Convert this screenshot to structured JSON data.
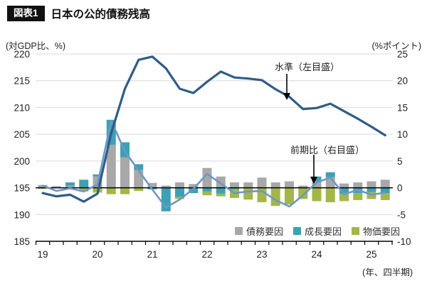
{
  "header": {
    "badge": "図表1",
    "title": "日本の公的債務残高"
  },
  "colors": {
    "level_line": "#2e5c88",
    "qoq_line": "#6d97c6",
    "debt_bar": "#a8a8a8",
    "growth_bar": "#3aa2b4",
    "price_bar": "#a2b748",
    "grid": "#d9d9d9",
    "axis": "#000000"
  },
  "chart_data": {
    "type": "combo-bar-line",
    "title": "日本の公的債務残高",
    "x_quarters": [
      "2019Q1",
      "2019Q2",
      "2019Q3",
      "2019Q4",
      "2020Q1",
      "2020Q2",
      "2020Q3",
      "2020Q4",
      "2021Q1",
      "2021Q2",
      "2021Q3",
      "2021Q4",
      "2022Q1",
      "2022Q2",
      "2022Q3",
      "2022Q4",
      "2023Q1",
      "2023Q2",
      "2023Q3",
      "2023Q4",
      "2024Q1",
      "2024Q2",
      "2024Q3",
      "2024Q4",
      "2025Q1",
      "2025Q2"
    ],
    "x_year_ticks": [
      "19",
      "20",
      "21",
      "22",
      "23",
      "24",
      "25"
    ],
    "xlabel_note": "(年、四半期)",
    "grid": true,
    "left_axis": {
      "label": "(対GDP比、%)",
      "min": 185,
      "max": 220,
      "ticks": [
        220,
        215,
        210,
        205,
        200,
        195,
        190,
        185
      ]
    },
    "right_axis": {
      "label": "(%ポイント)",
      "min": -10,
      "max": 25,
      "ticks": [
        25,
        20,
        15,
        10,
        5,
        0,
        -5,
        -10
      ]
    },
    "annotations": {
      "level": "水準（左目盛）",
      "qoq": "前期比（右目盛）"
    },
    "bar_series": [
      {
        "name": "債務要因",
        "color": "#a8a8a8",
        "axis": "right",
        "values": [
          0.4,
          0.3,
          0.4,
          0,
          2.1,
          8.0,
          5.7,
          3.3,
          0.9,
          0.4,
          1.0,
          0.7,
          3.7,
          2.1,
          1.0,
          1.0,
          1.9,
          1.0,
          1.2,
          0.4,
          1.2,
          2.0,
          0.8,
          1.0,
          1.2,
          1.5
        ]
      },
      {
        "name": "成長要因",
        "color": "#3aa2b4",
        "axis": "right",
        "values": [
          0.1,
          0,
          0.6,
          1.5,
          0.4,
          4.7,
          2.8,
          1.1,
          -0.3,
          -4.4,
          -1.7,
          -1.0,
          -0.7,
          -1.1,
          -0.3,
          0,
          0,
          0,
          0,
          0,
          0.9,
          0.9,
          -1.2,
          -1.0,
          -0.8,
          -1.0
        ]
      },
      {
        "name": "物価要因",
        "color": "#a2b748",
        "axis": "right",
        "values": [
          -0.2,
          0,
          0,
          -0.7,
          -0.9,
          -1.2,
          -1.2,
          -0.6,
          0,
          0,
          -0.4,
          0,
          -0.7,
          -0.5,
          -1.6,
          -2.2,
          -2.7,
          -3.4,
          -3.1,
          -2.1,
          -2.5,
          -2.7,
          -1.3,
          -1.3,
          -1.3,
          -1.3
        ]
      }
    ],
    "line_series": [
      {
        "name": "水準（左目盛）",
        "axis": "left",
        "color": "#2e5c88",
        "width": 3.2,
        "values": [
          194.0,
          193.4,
          193.7,
          192.4,
          193.9,
          205.2,
          213.5,
          218.9,
          219.5,
          217.3,
          213.5,
          212.7,
          214.8,
          216.7,
          215.6,
          215.4,
          215.1,
          213.4,
          212.0,
          209.7,
          209.9,
          210.7,
          209.3,
          207.9,
          206.4,
          204.8
        ]
      },
      {
        "name": "前期比（右目盛）",
        "axis": "right",
        "color": "#6d97c6",
        "width": 2.6,
        "values": [
          0.4,
          -0.6,
          -0.1,
          -0.7,
          0.6,
          12.5,
          6.8,
          3.2,
          -0.3,
          -3.7,
          -2.2,
          -0.2,
          2.6,
          0.8,
          -1.0,
          -0.7,
          -0.6,
          -2.3,
          -3.5,
          -1.4,
          1.0,
          1.9,
          -1.2,
          -0.4,
          -1.3,
          -0.9
        ]
      }
    ]
  }
}
